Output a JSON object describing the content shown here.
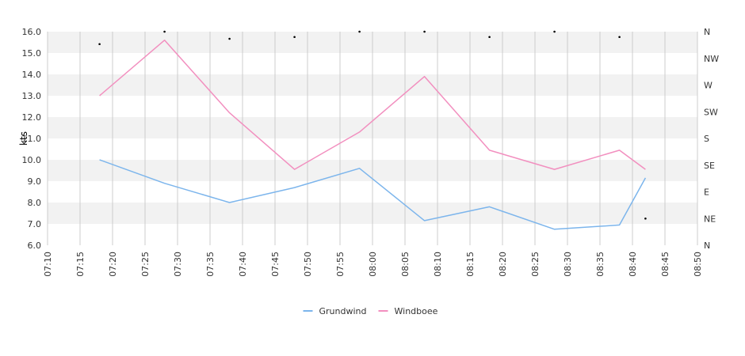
{
  "chart_data": {
    "type": "line",
    "ylabel": "kts",
    "ylim": [
      6.0,
      16.0
    ],
    "y_ticks": [
      "6.0",
      "7.0",
      "8.0",
      "9.0",
      "10.0",
      "11.0",
      "12.0",
      "13.0",
      "14.0",
      "15.0",
      "16.0"
    ],
    "x_ticks": [
      "07:10",
      "07:15",
      "07:20",
      "07:25",
      "07:30",
      "07:35",
      "07:40",
      "07:45",
      "07:50",
      "07:55",
      "08:00",
      "08:05",
      "08:10",
      "08:15",
      "08:20",
      "08:25",
      "08:30",
      "08:35",
      "08:40",
      "08:45",
      "08:50"
    ],
    "xlim": [
      "07:10",
      "08:50"
    ],
    "direction_axis": [
      "N",
      "NE",
      "E",
      "SE",
      "S",
      "SW",
      "W",
      "NW",
      "N"
    ],
    "grid": true,
    "legend_position": "bottom",
    "series": [
      {
        "name": "Grundwind",
        "color": "#7cb5ec",
        "x": [
          "07:18",
          "07:28",
          "07:38",
          "07:48",
          "07:58",
          "08:08",
          "08:18",
          "08:28",
          "08:38",
          "08:42"
        ],
        "values": [
          10.0,
          8.9,
          8.0,
          8.7,
          9.6,
          7.15,
          7.8,
          6.75,
          6.95,
          9.15
        ]
      },
      {
        "name": "Windboee",
        "color": "#f28fbf",
        "x": [
          "07:18",
          "07:28",
          "07:38",
          "07:48",
          "07:58",
          "08:08",
          "08:18",
          "08:28",
          "08:38",
          "08:42"
        ],
        "values": [
          13.0,
          15.6,
          12.2,
          9.55,
          11.3,
          13.9,
          10.45,
          9.55,
          10.45,
          9.55
        ]
      }
    ],
    "wind_direction_markers": {
      "x": [
        "07:18",
        "07:28",
        "07:38",
        "07:48",
        "07:58",
        "08:08",
        "08:18",
        "08:28",
        "08:38",
        "08:42"
      ],
      "values_deg": [
        339,
        360,
        348,
        351,
        360,
        360,
        351,
        360,
        351,
        45
      ]
    }
  }
}
